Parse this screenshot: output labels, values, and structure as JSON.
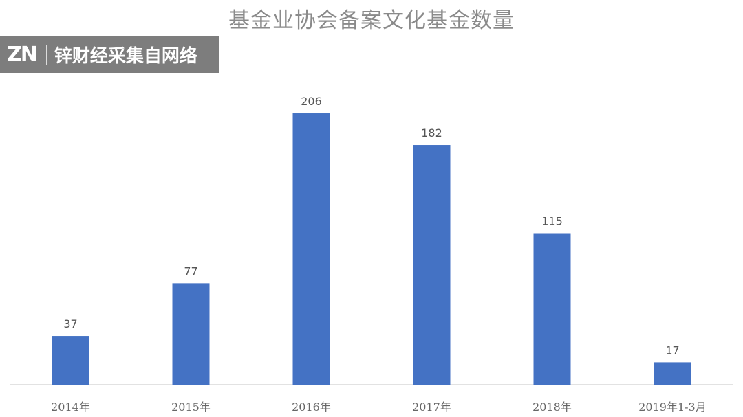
{
  "watermark": {
    "logo": "ZN",
    "text": "锌财经采集自网络"
  },
  "chart_data": {
    "type": "bar",
    "title": "基金业协会备案文化基金数量",
    "categories": [
      "2014年",
      "2015年",
      "2016年",
      "2017年",
      "2018年",
      "2019年1-3月"
    ],
    "values": [
      37,
      77,
      206,
      182,
      115,
      17
    ],
    "data_labels": [
      "37",
      "77",
      "206",
      "182",
      "115",
      "17"
    ],
    "xlabel": "",
    "ylabel": "",
    "ylim": [
      0,
      230
    ],
    "grid": false,
    "legend": "none",
    "bar_color": "#4472c4"
  }
}
